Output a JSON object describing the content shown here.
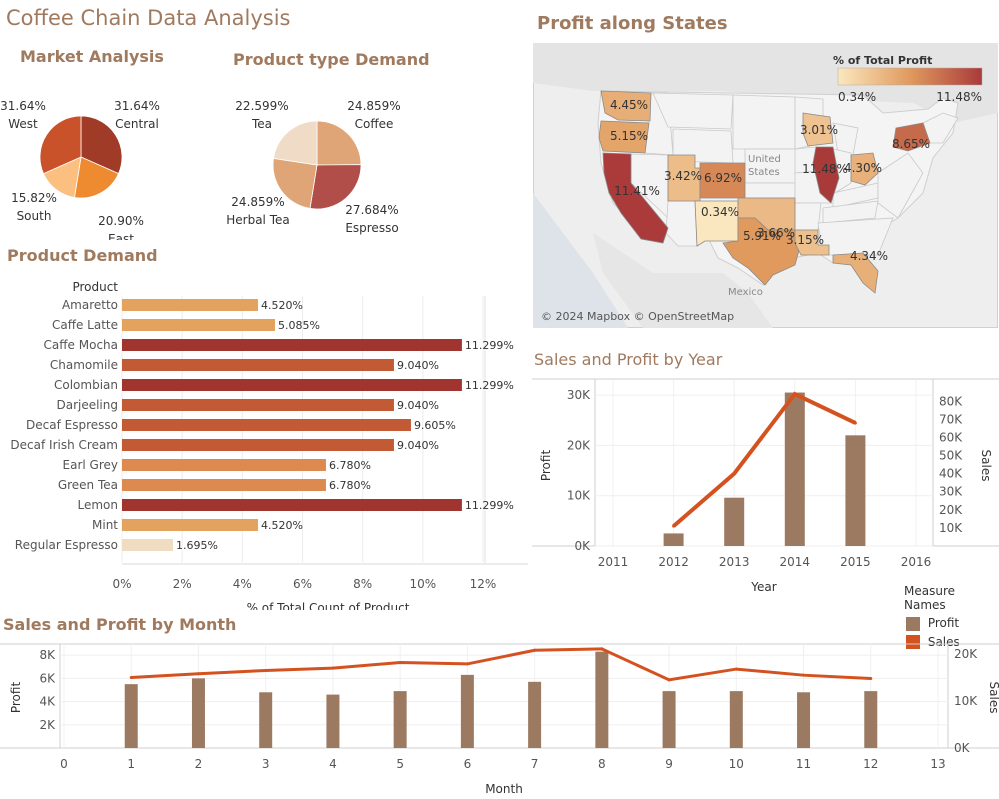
{
  "dashboard_title": "Coffee Chain Data Analysis",
  "colors": {
    "title": "#a07a5e",
    "profit": "#9c7a62",
    "sales": "#d4521f",
    "pie_west": "#c9522a",
    "pie_central": "#a03b27",
    "pie_east": "#ee8a2f",
    "pie_south": "#fbbf80"
  },
  "market_analysis": {
    "title": "Market Analysis",
    "chart_data": {
      "type": "pie",
      "slices": [
        {
          "name": "Central",
          "value": 31.64,
          "label": "31.64%",
          "color": "#a03b27"
        },
        {
          "name": "East",
          "value": 20.9,
          "label": "20.90%",
          "color": "#ee8a2f"
        },
        {
          "name": "South",
          "value": 15.82,
          "label": "15.82%",
          "color": "#fbbf80"
        },
        {
          "name": "West",
          "value": 31.64,
          "label": "31.64%",
          "color": "#c9522a"
        }
      ]
    }
  },
  "product_type_demand": {
    "title": "Product type Demand",
    "chart_data": {
      "type": "pie",
      "slices": [
        {
          "name": "Coffee",
          "value": 24.859,
          "label": "24.859%",
          "color": "#dfa577"
        },
        {
          "name": "Espresso",
          "value": 27.684,
          "label": "27.684%",
          "color": "#b14e4a"
        },
        {
          "name": "Herbal Tea",
          "value": 24.859,
          "label": "24.859%",
          "color": "#dfa577"
        },
        {
          "name": "Tea",
          "value": 22.599,
          "label": "22.599%",
          "color": "#f0dcc6"
        }
      ]
    }
  },
  "product_demand": {
    "title": "Product Demand",
    "column_header": "Product",
    "chart_data": {
      "type": "bar",
      "orientation": "horizontal",
      "categories": [
        "Amaretto",
        "Caffe Latte",
        "Caffe Mocha",
        "Chamomile",
        "Colombian",
        "Darjeeling",
        "Decaf Espresso",
        "Decaf Irish Cream",
        "Earl Grey",
        "Green Tea",
        "Lemon",
        "Mint",
        "Regular Espresso"
      ],
      "values": [
        4.52,
        5.085,
        11.299,
        9.04,
        11.299,
        9.04,
        9.605,
        9.04,
        6.78,
        6.78,
        11.299,
        4.52,
        1.695
      ],
      "labels": [
        "4.520%",
        "5.085%",
        "11.299%",
        "9.040%",
        "11.299%",
        "9.040%",
        "9.605%",
        "9.040%",
        "6.780%",
        "6.780%",
        "11.299%",
        "4.520%",
        "1.695%"
      ],
      "xlabel": "% of Total Count of Product",
      "xticks": [
        "0%",
        "2%",
        "4%",
        "6%",
        "8%",
        "10%",
        "12%"
      ],
      "xlim": [
        0,
        12.6
      ],
      "color_low": "#f0dcc0",
      "color_mid": "#e3a25e",
      "color_high": "#a03530"
    }
  },
  "profit_map": {
    "title": "Profit along States",
    "legend_title": "% of Total Profit",
    "legend_min": "0.34%",
    "legend_max": "11.48%",
    "attribution": "© 2024 Mapbox © OpenStreetMap",
    "country_labels": [
      "United",
      "States",
      "Mexico"
    ],
    "state_values": [
      {
        "state": "Washington",
        "label": "4.45%",
        "value": 4.45
      },
      {
        "state": "Oregon",
        "label": "5.15%",
        "value": 5.15
      },
      {
        "state": "California",
        "label": "11.41%",
        "value": 11.41
      },
      {
        "state": "Utah",
        "label": "3.42%",
        "value": 3.42
      },
      {
        "state": "Colorado",
        "label": "6.92%",
        "value": 6.92
      },
      {
        "state": "New Mexico",
        "label": "0.34%",
        "value": 0.34
      },
      {
        "state": "Oklahoma",
        "label": "3.66%",
        "value": 3.66
      },
      {
        "state": "Texas",
        "label": "5.91%",
        "value": 5.91
      },
      {
        "state": "Louisiana",
        "label": "3.15%",
        "value": 3.15
      },
      {
        "state": "Wisconsin",
        "label": "3.01%",
        "value": 3.01
      },
      {
        "state": "Illinois",
        "label": "11.48%",
        "value": 11.48
      },
      {
        "state": "Ohio",
        "label": "4.30%",
        "value": 4.3
      },
      {
        "state": "New York",
        "label": "8.65%",
        "value": 8.65
      },
      {
        "state": "Florida",
        "label": "4.34%",
        "value": 4.34
      }
    ]
  },
  "sales_profit_year": {
    "title": "Sales and Profit by Year",
    "chart_data": {
      "type": "bar",
      "x": [
        2011,
        2012,
        2013,
        2014,
        2015,
        2016
      ],
      "xticks": [
        "2011",
        "2012",
        "2013",
        "2014",
        "2015",
        "2016"
      ],
      "xlabel": "Year",
      "series": [
        {
          "name": "Profit",
          "type": "bar",
          "axis": "left",
          "x": [
            2012,
            2013,
            2014,
            2015
          ],
          "values": [
            2500,
            9600,
            30500,
            22000
          ]
        },
        {
          "name": "Sales",
          "type": "line",
          "axis": "right",
          "x": [
            2012,
            2013,
            2014,
            2015
          ],
          "values": [
            11000,
            40000,
            84000,
            68000
          ]
        }
      ],
      "ylabel_left": "Profit",
      "ylabel_right": "Sales",
      "ylim_left": [
        0,
        32000
      ],
      "ylim_right": [
        0,
        89000
      ],
      "yticks_left": [
        "0K",
        "10K",
        "20K",
        "30K"
      ],
      "yticks_right": [
        "10K",
        "20K",
        "30K",
        "40K",
        "50K",
        "60K",
        "70K",
        "80K"
      ]
    }
  },
  "measure_legend": {
    "title": "Measure Names",
    "items": [
      {
        "name": "Profit",
        "color": "#9c7a62"
      },
      {
        "name": "Sales",
        "color": "#d4521f"
      }
    ]
  },
  "sales_profit_month": {
    "title": "Sales and Profit by Month",
    "chart_data": {
      "type": "bar",
      "x": [
        1,
        2,
        3,
        4,
        5,
        6,
        7,
        8,
        9,
        10,
        11,
        12
      ],
      "xticks": [
        "0",
        "1",
        "2",
        "3",
        "4",
        "5",
        "6",
        "7",
        "8",
        "9",
        "10",
        "11",
        "12",
        "13"
      ],
      "xlabel": "Month",
      "series": [
        {
          "name": "Profit",
          "type": "bar",
          "axis": "left",
          "values": [
            5500,
            6000,
            4800,
            4600,
            4900,
            6300,
            5700,
            8300,
            4900,
            4900,
            4800,
            4900
          ]
        },
        {
          "name": "Sales",
          "type": "line",
          "axis": "right",
          "values": [
            15000,
            15800,
            16500,
            17000,
            18200,
            17900,
            20800,
            21100,
            14500,
            16800,
            15500,
            14800
          ]
        }
      ],
      "ylabel_left": "Profit",
      "ylabel_right": "Sales",
      "ylim_left": [
        0,
        8700
      ],
      "ylim_right": [
        0,
        21500
      ],
      "yticks_left": [
        "2K",
        "4K",
        "6K",
        "8K"
      ],
      "yticks_right": [
        "0K",
        "10K",
        "20K"
      ]
    }
  }
}
